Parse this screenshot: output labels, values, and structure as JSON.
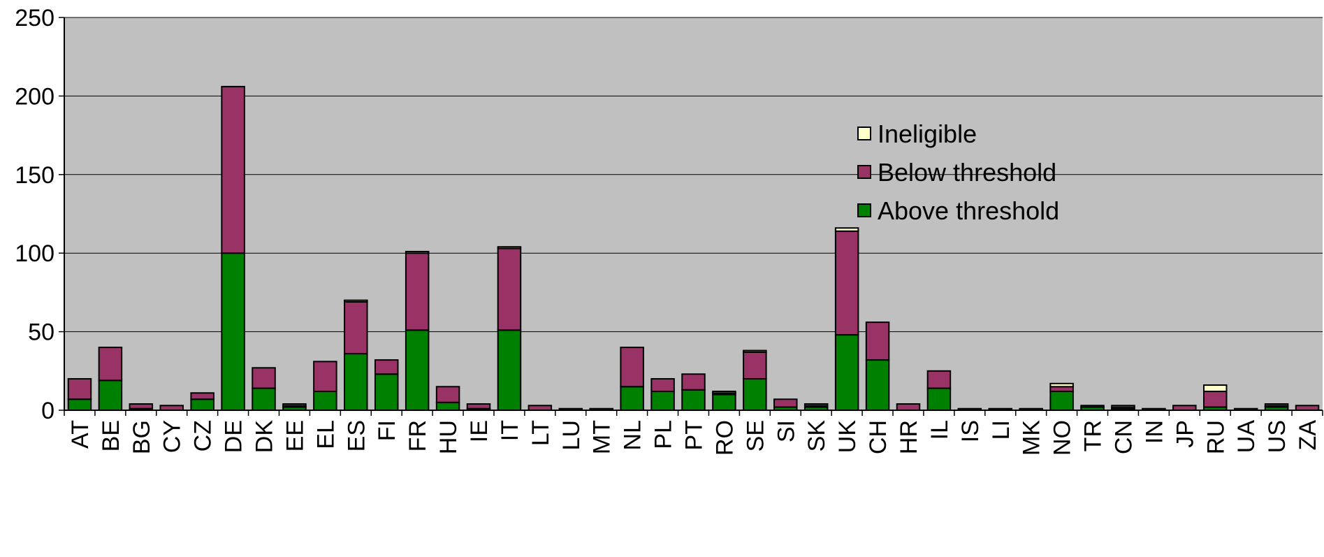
{
  "chart_data": {
    "type": "bar",
    "stacked": true,
    "title": "",
    "xlabel": "",
    "ylabel": "",
    "ylim": [
      0,
      250
    ],
    "yticks": [
      0,
      50,
      100,
      150,
      200,
      250
    ],
    "grid": true,
    "legend_position": "right",
    "categories": [
      "AT",
      "BE",
      "BG",
      "CY",
      "CZ",
      "DE",
      "DK",
      "EE",
      "EL",
      "ES",
      "FI",
      "FR",
      "HU",
      "IE",
      "IT",
      "LT",
      "LU",
      "MT",
      "NL",
      "PL",
      "PT",
      "RO",
      "SE",
      "SI",
      "SK",
      "UK",
      "CH",
      "HR",
      "IL",
      "IS",
      "LI",
      "MK",
      "NO",
      "TR",
      "CN",
      "IN",
      "JP",
      "RU",
      "UA",
      "US",
      "ZA"
    ],
    "series": [
      {
        "name": "Above threshold",
        "color": "#008000",
        "values": [
          7,
          19,
          1,
          0,
          7,
          100,
          14,
          2,
          12,
          36,
          23,
          51,
          5,
          1,
          51,
          0,
          0,
          0,
          15,
          12,
          13,
          10,
          20,
          2,
          2,
          48,
          32,
          0,
          14,
          0,
          0,
          0,
          12,
          2,
          1,
          0,
          0,
          2,
          0,
          2,
          0
        ]
      },
      {
        "name": "Below threshold",
        "color": "#993366",
        "values": [
          13,
          21,
          3,
          3,
          4,
          106,
          13,
          1,
          19,
          33,
          9,
          49,
          10,
          3,
          52,
          3,
          1,
          1,
          25,
          8,
          10,
          1,
          17,
          5,
          1,
          66,
          24,
          4,
          11,
          1,
          1,
          1,
          3,
          1,
          1,
          1,
          3,
          10,
          1,
          1,
          3
        ]
      },
      {
        "name": "Ineligible",
        "color": "#FFFFCC",
        "values": [
          0,
          0,
          0,
          0,
          0,
          0,
          0,
          1,
          0,
          1,
          0,
          1,
          0,
          0,
          1,
          0,
          0,
          0,
          0,
          0,
          0,
          1,
          1,
          0,
          1,
          2,
          0,
          0,
          0,
          0,
          0,
          0,
          2,
          0,
          1,
          0,
          0,
          4,
          0,
          1,
          0
        ]
      }
    ],
    "legend_order": [
      "Ineligible",
      "Below threshold",
      "Above threshold"
    ],
    "plot_background": "#C0C0C0"
  }
}
